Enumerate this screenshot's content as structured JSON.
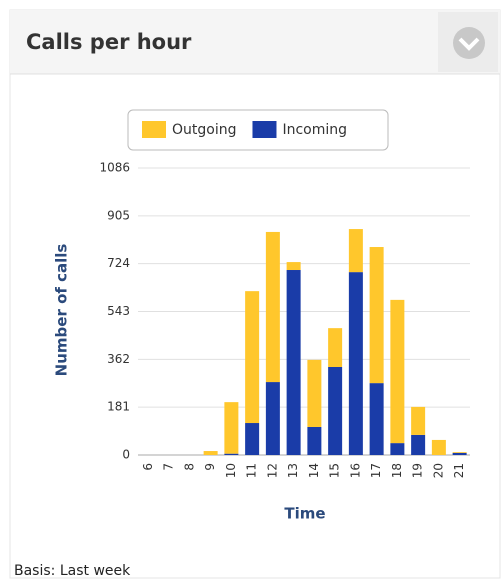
{
  "chart_data": {
    "type": "stacked_bar",
    "title": "Calls per hour",
    "categories": [
      "6",
      "7",
      "8",
      "9",
      "10",
      "11",
      "12",
      "13",
      "14",
      "15",
      "16",
      "17",
      "18",
      "19",
      "20",
      "21"
    ],
    "series": [
      {
        "name": "Outgoing",
        "color": "#ffc72c",
        "values": [
          0,
          0,
          0,
          15,
          195,
          499,
          568,
          30,
          254,
          147,
          163,
          515,
          542,
          106,
          57,
          3
        ]
      },
      {
        "name": "Incoming",
        "color": "#1a3ca8",
        "values": [
          0,
          0,
          0,
          0,
          5,
          121,
          276,
          700,
          106,
          333,
          692,
          272,
          45,
          76,
          0,
          8
        ]
      }
    ],
    "stack_order": [
      "Incoming",
      "Outgoing"
    ],
    "ylim": [
      0,
      1086
    ],
    "yticks": [
      0,
      181,
      362,
      543,
      724,
      905,
      1086
    ],
    "grid": true,
    "ylabel": "Number of calls",
    "xlabel": "Time",
    "legend": "top",
    "note": "Basis: Last week"
  }
}
